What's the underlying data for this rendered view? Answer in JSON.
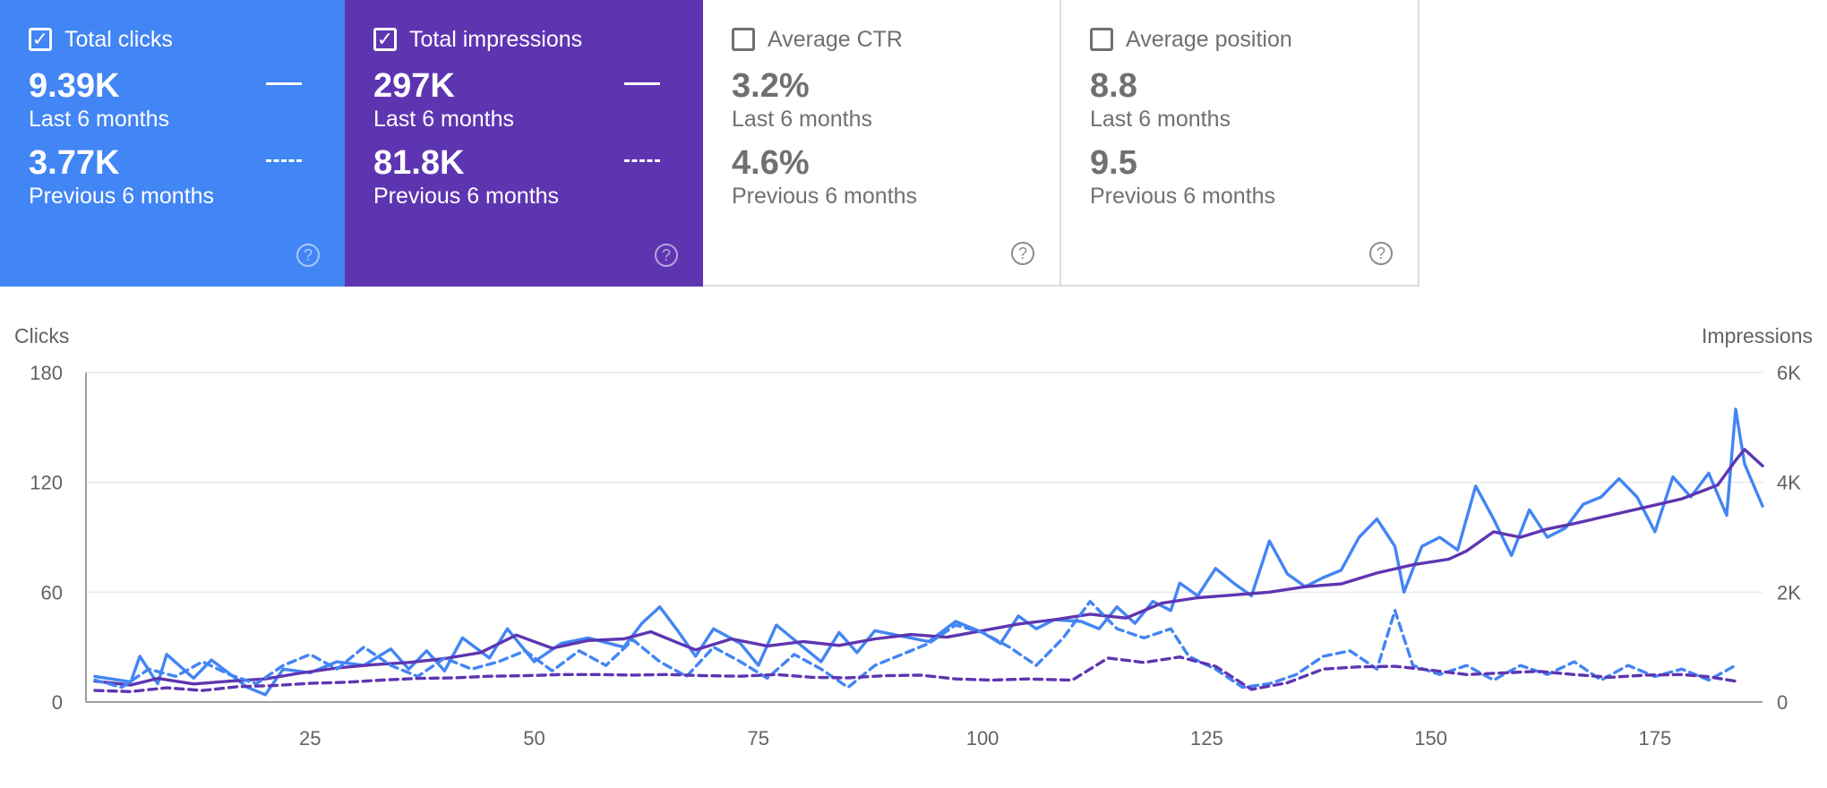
{
  "cards": [
    {
      "key": "clicks",
      "title": "Total clicks",
      "checked": true,
      "check_glyph": "✓",
      "current_value": "9.39K",
      "current_label": "Last 6 months",
      "previous_value": "3.77K",
      "previous_label": "Previous 6 months",
      "help": "?",
      "color": "#4285f4"
    },
    {
      "key": "impr",
      "title": "Total impressions",
      "checked": true,
      "check_glyph": "✓",
      "current_value": "297K",
      "current_label": "Last 6 months",
      "previous_value": "81.8K",
      "previous_label": "Previous 6 months",
      "help": "?",
      "color": "#5e35b1"
    },
    {
      "key": "ctr",
      "title": "Average CTR",
      "checked": false,
      "check_glyph": "",
      "current_value": "3.2%",
      "current_label": "Last 6 months",
      "previous_value": "4.6%",
      "previous_label": "Previous 6 months",
      "help": "?",
      "color": "#ffffff"
    },
    {
      "key": "pos",
      "title": "Average position",
      "checked": false,
      "check_glyph": "",
      "current_value": "8.8",
      "current_label": "Last 6 months",
      "previous_value": "9.5",
      "previous_label": "Previous 6 months",
      "help": "?",
      "color": "#ffffff"
    }
  ],
  "chart_data": {
    "type": "line",
    "ylabel_left": "Clicks",
    "ylabel_right": "Impressions",
    "y_left_range": [
      0,
      180
    ],
    "y_left_ticks": [
      "0",
      "60",
      "120",
      "180"
    ],
    "y_left_tick_values": [
      0,
      60,
      120,
      180
    ],
    "y_right_range": [
      0,
      6000
    ],
    "y_right_ticks": [
      "0",
      "2K",
      "4K",
      "6K"
    ],
    "y_right_tick_values": [
      0,
      2000,
      4000,
      6000
    ],
    "x_range": [
      0,
      187
    ],
    "x_ticks": [
      "25",
      "50",
      "75",
      "100",
      "125",
      "150",
      "175"
    ],
    "x_tick_values": [
      25,
      50,
      75,
      100,
      125,
      150,
      175
    ],
    "grid": true,
    "series": [
      {
        "name": "Clicks (last 6 months)",
        "axis": "left",
        "color": "#4285f4",
        "dashed": false,
        "anchors": [
          [
            1,
            14
          ],
          [
            5,
            11
          ],
          [
            6,
            25
          ],
          [
            8,
            10
          ],
          [
            9,
            26
          ],
          [
            12,
            13
          ],
          [
            14,
            23
          ],
          [
            18,
            8
          ],
          [
            20,
            4
          ],
          [
            22,
            18
          ],
          [
            25,
            16
          ],
          [
            28,
            22
          ],
          [
            31,
            20
          ],
          [
            34,
            29
          ],
          [
            36,
            18
          ],
          [
            38,
            28
          ],
          [
            40,
            17
          ],
          [
            42,
            35
          ],
          [
            45,
            24
          ],
          [
            47,
            40
          ],
          [
            50,
            22
          ],
          [
            53,
            32
          ],
          [
            56,
            35
          ],
          [
            60,
            30
          ],
          [
            62,
            43
          ],
          [
            64,
            52
          ],
          [
            66,
            39
          ],
          [
            68,
            25
          ],
          [
            70,
            40
          ],
          [
            73,
            32
          ],
          [
            75,
            20
          ],
          [
            77,
            42
          ],
          [
            80,
            30
          ],
          [
            82,
            22
          ],
          [
            84,
            38
          ],
          [
            86,
            27
          ],
          [
            88,
            39
          ],
          [
            91,
            36
          ],
          [
            94,
            33
          ],
          [
            97,
            44
          ],
          [
            100,
            38
          ],
          [
            102,
            32
          ],
          [
            104,
            47
          ],
          [
            106,
            40
          ],
          [
            108,
            45
          ],
          [
            111,
            44
          ],
          [
            113,
            40
          ],
          [
            115,
            52
          ],
          [
            117,
            43
          ],
          [
            119,
            55
          ],
          [
            121,
            50
          ],
          [
            122,
            65
          ],
          [
            124,
            58
          ],
          [
            126,
            73
          ],
          [
            128,
            65
          ],
          [
            130,
            58
          ],
          [
            132,
            88
          ],
          [
            134,
            70
          ],
          [
            136,
            63
          ],
          [
            138,
            68
          ],
          [
            140,
            72
          ],
          [
            142,
            90
          ],
          [
            144,
            100
          ],
          [
            146,
            85
          ],
          [
            147,
            60
          ],
          [
            149,
            85
          ],
          [
            151,
            90
          ],
          [
            153,
            83
          ],
          [
            155,
            118
          ],
          [
            157,
            100
          ],
          [
            159,
            80
          ],
          [
            161,
            105
          ],
          [
            163,
            90
          ],
          [
            165,
            95
          ],
          [
            167,
            108
          ],
          [
            169,
            112
          ],
          [
            171,
            122
          ],
          [
            173,
            112
          ],
          [
            175,
            93
          ],
          [
            177,
            123
          ],
          [
            179,
            112
          ],
          [
            181,
            125
          ],
          [
            183,
            102
          ],
          [
            184,
            160
          ],
          [
            185,
            130
          ],
          [
            187,
            107
          ]
        ]
      },
      {
        "name": "Impressions (last 6 months)",
        "axis": "right",
        "color": "#5e35b1",
        "dashed": false,
        "anchors": [
          [
            1,
            380
          ],
          [
            5,
            310
          ],
          [
            8,
            430
          ],
          [
            12,
            330
          ],
          [
            16,
            380
          ],
          [
            20,
            420
          ],
          [
            24,
            530
          ],
          [
            28,
            620
          ],
          [
            32,
            680
          ],
          [
            36,
            720
          ],
          [
            40,
            790
          ],
          [
            44,
            900
          ],
          [
            48,
            1220
          ],
          [
            52,
            980
          ],
          [
            56,
            1120
          ],
          [
            60,
            1150
          ],
          [
            63,
            1280
          ],
          [
            66,
            1080
          ],
          [
            68,
            950
          ],
          [
            72,
            1150
          ],
          [
            76,
            1020
          ],
          [
            80,
            1100
          ],
          [
            84,
            1030
          ],
          [
            88,
            1150
          ],
          [
            92,
            1230
          ],
          [
            96,
            1180
          ],
          [
            100,
            1300
          ],
          [
            104,
            1420
          ],
          [
            108,
            1500
          ],
          [
            112,
            1600
          ],
          [
            116,
            1530
          ],
          [
            120,
            1800
          ],
          [
            124,
            1900
          ],
          [
            128,
            1950
          ],
          [
            132,
            2000
          ],
          [
            136,
            2100
          ],
          [
            140,
            2150
          ],
          [
            144,
            2350
          ],
          [
            148,
            2500
          ],
          [
            152,
            2600
          ],
          [
            154,
            2750
          ],
          [
            157,
            3100
          ],
          [
            160,
            3000
          ],
          [
            163,
            3150
          ],
          [
            166,
            3250
          ],
          [
            170,
            3400
          ],
          [
            174,
            3550
          ],
          [
            178,
            3700
          ],
          [
            182,
            3950
          ],
          [
            184,
            4400
          ],
          [
            185,
            4600
          ],
          [
            187,
            4300
          ]
        ]
      },
      {
        "name": "Clicks (previous 6 months)",
        "axis": "left",
        "color": "#4285f4",
        "dashed": true,
        "anchors": [
          [
            1,
            12
          ],
          [
            4,
            8
          ],
          [
            7,
            18
          ],
          [
            10,
            14
          ],
          [
            13,
            22
          ],
          [
            16,
            15
          ],
          [
            19,
            10
          ],
          [
            22,
            20
          ],
          [
            25,
            26
          ],
          [
            28,
            18
          ],
          [
            31,
            30
          ],
          [
            34,
            20
          ],
          [
            37,
            14
          ],
          [
            40,
            24
          ],
          [
            43,
            18
          ],
          [
            46,
            22
          ],
          [
            49,
            28
          ],
          [
            52,
            17
          ],
          [
            55,
            28
          ],
          [
            58,
            20
          ],
          [
            61,
            34
          ],
          [
            64,
            22
          ],
          [
            67,
            14
          ],
          [
            70,
            30
          ],
          [
            73,
            22
          ],
          [
            76,
            13
          ],
          [
            79,
            26
          ],
          [
            82,
            18
          ],
          [
            85,
            8
          ],
          [
            88,
            20
          ],
          [
            91,
            26
          ],
          [
            94,
            32
          ],
          [
            97,
            42
          ],
          [
            100,
            38
          ],
          [
            103,
            30
          ],
          [
            106,
            20
          ],
          [
            109,
            35
          ],
          [
            112,
            55
          ],
          [
            115,
            40
          ],
          [
            118,
            35
          ],
          [
            121,
            40
          ],
          [
            123,
            25
          ],
          [
            126,
            18
          ],
          [
            129,
            8
          ],
          [
            132,
            10
          ],
          [
            135,
            15
          ],
          [
            138,
            25
          ],
          [
            141,
            28
          ],
          [
            144,
            18
          ],
          [
            146,
            50
          ],
          [
            148,
            20
          ],
          [
            151,
            15
          ],
          [
            154,
            20
          ],
          [
            157,
            12
          ],
          [
            160,
            20
          ],
          [
            163,
            15
          ],
          [
            166,
            22
          ],
          [
            169,
            12
          ],
          [
            172,
            20
          ],
          [
            175,
            14
          ],
          [
            178,
            18
          ],
          [
            181,
            12
          ],
          [
            184,
            20
          ]
        ]
      },
      {
        "name": "Impressions (previous 6 months)",
        "axis": "right",
        "color": "#5e35b1",
        "dashed": true,
        "anchors": [
          [
            1,
            210
          ],
          [
            5,
            190
          ],
          [
            9,
            260
          ],
          [
            13,
            210
          ],
          [
            17,
            280
          ],
          [
            21,
            300
          ],
          [
            25,
            340
          ],
          [
            29,
            360
          ],
          [
            33,
            400
          ],
          [
            37,
            430
          ],
          [
            41,
            440
          ],
          [
            45,
            470
          ],
          [
            49,
            480
          ],
          [
            53,
            500
          ],
          [
            57,
            500
          ],
          [
            61,
            490
          ],
          [
            65,
            500
          ],
          [
            69,
            480
          ],
          [
            73,
            470
          ],
          [
            77,
            500
          ],
          [
            81,
            450
          ],
          [
            85,
            440
          ],
          [
            89,
            480
          ],
          [
            93,
            490
          ],
          [
            97,
            420
          ],
          [
            101,
            400
          ],
          [
            105,
            420
          ],
          [
            110,
            400
          ],
          [
            114,
            800
          ],
          [
            118,
            720
          ],
          [
            122,
            820
          ],
          [
            126,
            650
          ],
          [
            130,
            230
          ],
          [
            134,
            350
          ],
          [
            138,
            600
          ],
          [
            142,
            640
          ],
          [
            146,
            650
          ],
          [
            150,
            580
          ],
          [
            154,
            500
          ],
          [
            158,
            530
          ],
          [
            162,
            560
          ],
          [
            166,
            500
          ],
          [
            170,
            450
          ],
          [
            174,
            490
          ],
          [
            178,
            500
          ],
          [
            181,
            460
          ],
          [
            184,
            380
          ]
        ]
      }
    ]
  }
}
